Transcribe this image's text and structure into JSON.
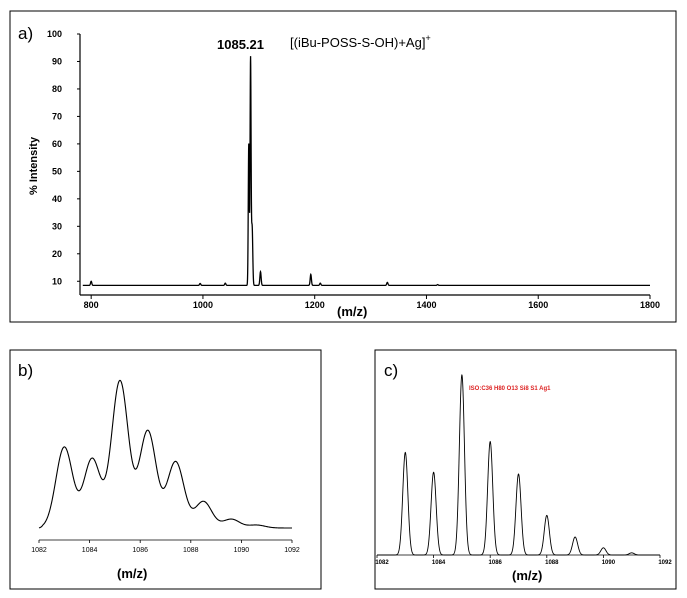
{
  "colors": {
    "iso_label": "#dd2222",
    "line": "#000000"
  },
  "chart_data": [
    {
      "type": "line",
      "panel": "a)",
      "xlabel": "(m/z)",
      "ylabel": "% Intensity",
      "xlim": [
        780,
        1800
      ],
      "ylim": [
        5,
        100
      ],
      "xticks": [
        "800",
        "1000",
        "1200",
        "1400",
        "1600",
        "1800"
      ],
      "yticks": [
        "10",
        "20",
        "30",
        "40",
        "50",
        "60",
        "70",
        "80",
        "90",
        "100"
      ],
      "peak_label": "1085.21",
      "assignment": "[(iBu-POSS-S-OH)+Ag]",
      "assignment_sup": "+",
      "baseline": 8.5,
      "peaks": [
        {
          "x": 800,
          "y": 10
        },
        {
          "x": 995,
          "y": 9.2
        },
        {
          "x": 1040,
          "y": 9.3
        },
        {
          "x": 1082,
          "y": 60
        },
        {
          "x": 1085.21,
          "y": 91
        },
        {
          "x": 1088,
          "y": 30
        },
        {
          "x": 1103,
          "y": 13.5
        },
        {
          "x": 1193,
          "y": 12.5
        },
        {
          "x": 1210,
          "y": 9.3
        },
        {
          "x": 1330,
          "y": 9.6
        },
        {
          "x": 1420,
          "y": 8.8
        }
      ]
    },
    {
      "type": "line",
      "panel": "b)",
      "xlabel": "(m/z)",
      "xlim": [
        1082,
        1092
      ],
      "xticks": [
        "1082",
        "1084",
        "1086",
        "1088",
        "1090",
        "1092"
      ],
      "peaks": [
        {
          "x": 1083.0,
          "y": 55
        },
        {
          "x": 1084.1,
          "y": 47
        },
        {
          "x": 1085.2,
          "y": 100
        },
        {
          "x": 1086.3,
          "y": 66
        },
        {
          "x": 1087.4,
          "y": 45
        },
        {
          "x": 1088.5,
          "y": 18
        },
        {
          "x": 1089.6,
          "y": 6
        },
        {
          "x": 1090.6,
          "y": 2
        }
      ]
    },
    {
      "type": "line",
      "panel": "c)",
      "title": "ISO:C36 H80 O13 Si8 S1 Ag1",
      "xlabel": "(m/z)",
      "xlim": [
        1082,
        1092
      ],
      "xticks": [
        "1082",
        "1084",
        "1086",
        "1088",
        "1090",
        "1092"
      ],
      "peaks": [
        {
          "x": 1083.0,
          "y": 57
        },
        {
          "x": 1084.0,
          "y": 46
        },
        {
          "x": 1085.0,
          "y": 100
        },
        {
          "x": 1086.0,
          "y": 63
        },
        {
          "x": 1087.0,
          "y": 45
        },
        {
          "x": 1088.0,
          "y": 22
        },
        {
          "x": 1089.0,
          "y": 10
        },
        {
          "x": 1090.0,
          "y": 4
        },
        {
          "x": 1091.0,
          "y": 1.2
        }
      ]
    }
  ]
}
